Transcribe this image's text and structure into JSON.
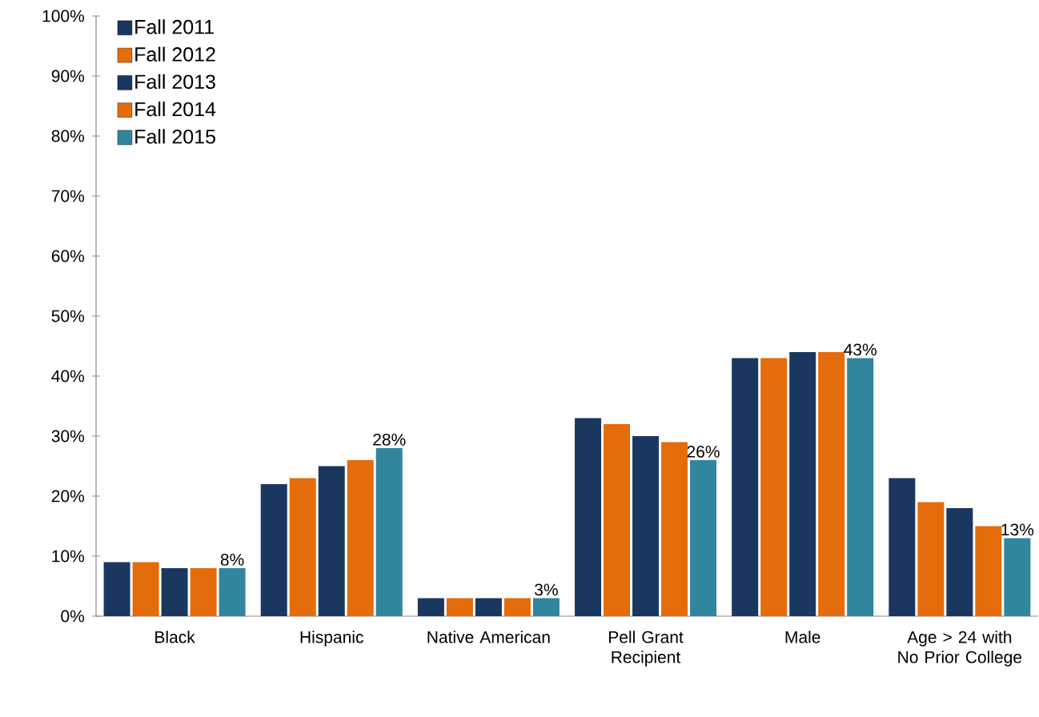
{
  "chart_data": {
    "type": "bar",
    "categories": [
      "Black",
      "Hispanic",
      "Native American",
      "Pell Grant Recipient",
      "Male",
      "Age > 24 with No Prior College"
    ],
    "series": [
      {
        "name": "Fall 2011",
        "color": "#1a3760",
        "values": [
          9,
          22,
          3,
          33,
          43,
          23
        ]
      },
      {
        "name": "Fall 2012",
        "color": "#e46c0a",
        "values": [
          9,
          23,
          3,
          32,
          43,
          19
        ]
      },
      {
        "name": "Fall 2013",
        "color": "#1a3760",
        "values": [
          8,
          25,
          3,
          30,
          44,
          18
        ]
      },
      {
        "name": "Fall 2014",
        "color": "#e46c0a",
        "values": [
          8,
          26,
          3,
          29,
          44,
          15
        ]
      },
      {
        "name": "Fall 2015",
        "color": "#31859c",
        "values": [
          8,
          28,
          3,
          26,
          43,
          13
        ],
        "value_labels": [
          "8%",
          "28%",
          "3%",
          "26%",
          "43%",
          "13%"
        ]
      }
    ],
    "ylim": [
      0,
      100
    ],
    "yticks": [
      {
        "value": 0,
        "label": "0%"
      },
      {
        "value": 10,
        "label": "10%"
      },
      {
        "value": 20,
        "label": "20%"
      },
      {
        "value": 30,
        "label": "30%"
      },
      {
        "value": 40,
        "label": "40%"
      },
      {
        "value": 50,
        "label": "50%"
      },
      {
        "value": 60,
        "label": "60%"
      },
      {
        "value": 70,
        "label": "70%"
      },
      {
        "value": 80,
        "label": "80%"
      },
      {
        "value": 90,
        "label": "90%"
      },
      {
        "value": 100,
        "label": "100%"
      }
    ],
    "legend": "top left",
    "grid": false
  }
}
